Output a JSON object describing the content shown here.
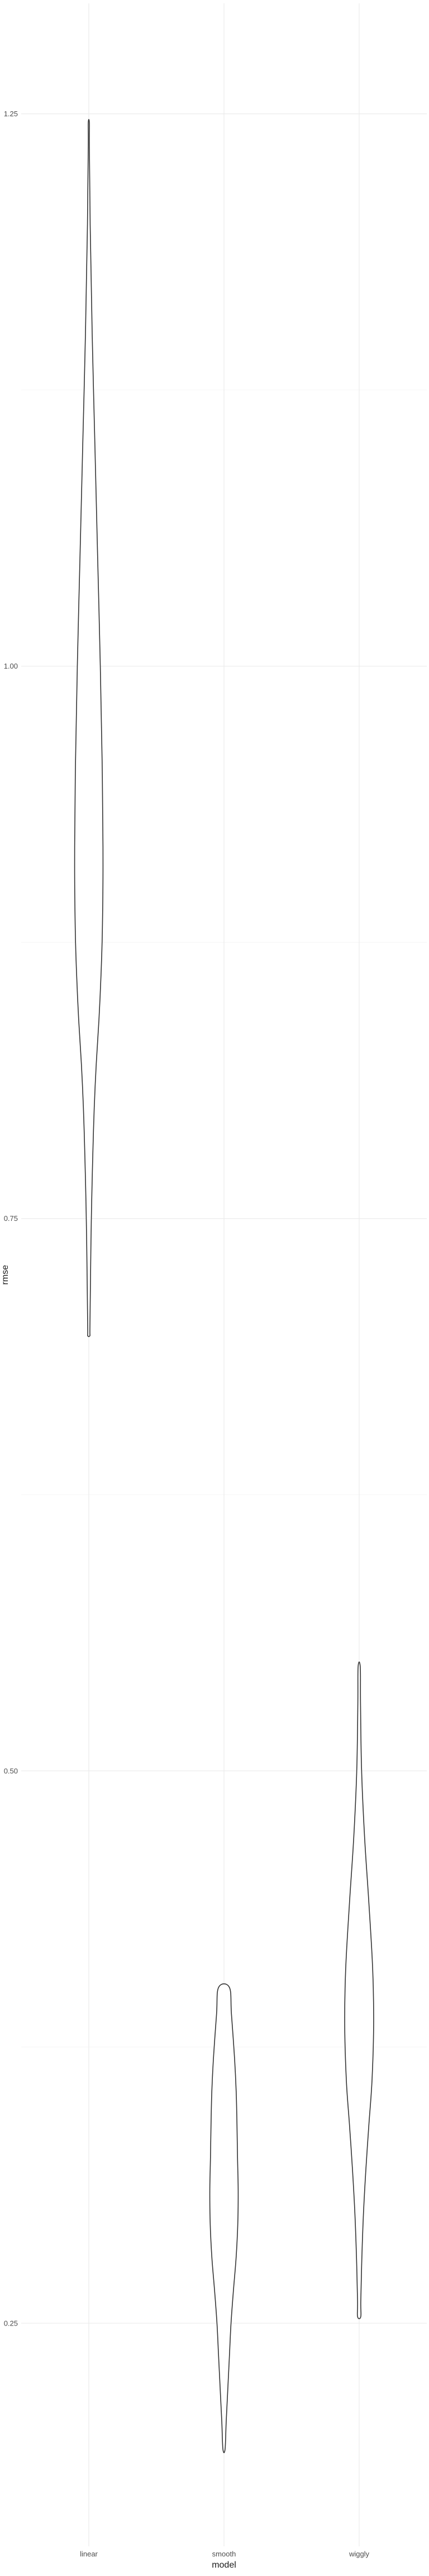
{
  "chart_data": {
    "type": "violin",
    "title": "",
    "xlabel": "model",
    "ylabel": "rmse",
    "categories": [
      "linear",
      "smooth",
      "wiggly"
    ],
    "ylim": [
      0.149,
      1.3
    ],
    "yticks": [
      0.25,
      0.5,
      0.75,
      1.0,
      1.25
    ],
    "ytick_labels": [
      "0.25",
      "0.50",
      "0.75",
      "1.00",
      "1.25"
    ],
    "grid": true,
    "legend": "none",
    "series": [
      {
        "category": "linear",
        "min": 0.697,
        "max": 1.246,
        "profile": [
          [
            1.246,
            0.004
          ],
          [
            1.235,
            0.004
          ],
          [
            1.2,
            0.01
          ],
          [
            1.15,
            0.025
          ],
          [
            1.1,
            0.045
          ],
          [
            1.05,
            0.065
          ],
          [
            1.0,
            0.085
          ],
          [
            0.95,
            0.1
          ],
          [
            0.91,
            0.105
          ],
          [
            0.88,
            0.1
          ],
          [
            0.86,
            0.09
          ],
          [
            0.84,
            0.075
          ],
          [
            0.82,
            0.055
          ],
          [
            0.8,
            0.04
          ],
          [
            0.78,
            0.03
          ],
          [
            0.76,
            0.022
          ],
          [
            0.74,
            0.016
          ],
          [
            0.72,
            0.012
          ],
          [
            0.7,
            0.008
          ],
          [
            0.697,
            0.008
          ]
        ]
      },
      {
        "category": "smooth",
        "min": 0.193,
        "max": 0.402,
        "profile": [
          [
            0.402,
            0.04
          ],
          [
            0.39,
            0.055
          ],
          [
            0.37,
            0.078
          ],
          [
            0.355,
            0.09
          ],
          [
            0.34,
            0.096
          ],
          [
            0.325,
            0.1
          ],
          [
            0.31,
            0.105
          ],
          [
            0.295,
            0.102
          ],
          [
            0.28,
            0.09
          ],
          [
            0.265,
            0.07
          ],
          [
            0.25,
            0.052
          ],
          [
            0.235,
            0.04
          ],
          [
            0.22,
            0.028
          ],
          [
            0.205,
            0.016
          ],
          [
            0.193,
            0.008
          ]
        ]
      },
      {
        "category": "wiggly",
        "min": 0.253,
        "max": 0.547,
        "profile": [
          [
            0.547,
            0.008
          ],
          [
            0.53,
            0.01
          ],
          [
            0.5,
            0.018
          ],
          [
            0.47,
            0.04
          ],
          [
            0.44,
            0.072
          ],
          [
            0.41,
            0.1
          ],
          [
            0.385,
            0.107
          ],
          [
            0.36,
            0.095
          ],
          [
            0.34,
            0.072
          ],
          [
            0.32,
            0.05
          ],
          [
            0.3,
            0.032
          ],
          [
            0.28,
            0.02
          ],
          [
            0.26,
            0.012
          ],
          [
            0.253,
            0.012
          ]
        ]
      }
    ]
  }
}
